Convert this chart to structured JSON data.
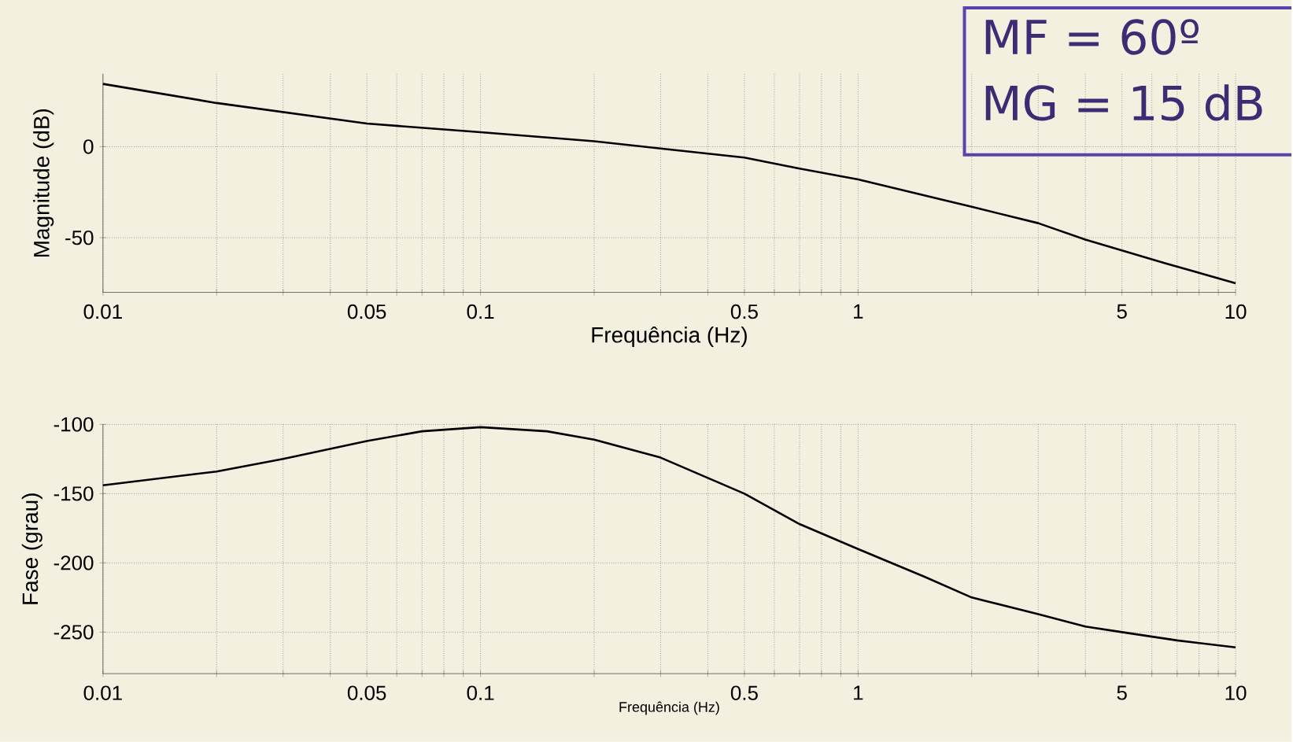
{
  "chart_data": [
    {
      "type": "line",
      "xlabel": "Frequência (Hz)",
      "ylabel": "Magnitude (dB)",
      "log": "x",
      "grid": true,
      "marker": "none",
      "line_style": "solid",
      "annotations": [
        "MF = 60º",
        "MG = 15 dB"
      ],
      "xlim": [
        0.01,
        10
      ],
      "ylim": [
        -80,
        40
      ],
      "xticks": [
        0.01,
        {
          "value": 0.02,
          "label": null
        },
        {
          "value": 0.03,
          "label": null
        },
        {
          "value": 0.04,
          "label": null
        },
        0.05,
        {
          "value": 0.06,
          "label": null
        },
        {
          "value": 0.07,
          "label": null
        },
        {
          "value": 0.08,
          "label": null
        },
        {
          "value": 0.09,
          "label": null
        },
        0.1,
        {
          "value": 0.2,
          "label": null
        },
        {
          "value": 0.3,
          "label": null
        },
        {
          "value": 0.4,
          "label": null
        },
        0.5,
        {
          "value": 0.6,
          "label": null
        },
        {
          "value": 0.7,
          "label": null
        },
        {
          "value": 0.8,
          "label": null
        },
        {
          "value": 0.9,
          "label": null
        },
        1,
        {
          "value": 2,
          "label": null
        },
        {
          "value": 3,
          "label": null
        },
        {
          "value": 4,
          "label": null
        },
        5,
        {
          "value": 6,
          "label": null
        },
        {
          "value": 7,
          "label": null
        },
        {
          "value": 8,
          "label": null
        },
        {
          "value": 9,
          "label": null
        },
        10
      ],
      "yticks": [
        -50,
        0
      ],
      "x": [
        0.01,
        0.02,
        0.05,
        0.1,
        0.2,
        0.3,
        0.5,
        0.7,
        1,
        2,
        3,
        4,
        6.5,
        10
      ],
      "series": [
        {
          "color": "#000000",
          "values": [
            34.5,
            24,
            12.7,
            8,
            3,
            -1,
            -6,
            -12,
            -18,
            -33,
            -42,
            -51,
            -64,
            -75
          ]
        }
      ]
    },
    {
      "type": "line",
      "xlabel": "Frequência (Hz)",
      "ylabel": "Fase (grau)",
      "log": "x",
      "grid": true,
      "marker": "none",
      "line_style": "solid",
      "xlim": [
        0.01,
        10
      ],
      "ylim": [
        -280,
        -100
      ],
      "xticks": [
        0.01,
        {
          "value": 0.02,
          "label": null
        },
        {
          "value": 0.03,
          "label": null
        },
        {
          "value": 0.04,
          "label": null
        },
        0.05,
        {
          "value": 0.06,
          "label": null
        },
        {
          "value": 0.07,
          "label": null
        },
        {
          "value": 0.08,
          "label": null
        },
        {
          "value": 0.09,
          "label": null
        },
        0.1,
        {
          "value": 0.2,
          "label": null
        },
        {
          "value": 0.3,
          "label": null
        },
        {
          "value": 0.4,
          "label": null
        },
        0.5,
        {
          "value": 0.6,
          "label": null
        },
        {
          "value": 0.7,
          "label": null
        },
        {
          "value": 0.8,
          "label": null
        },
        {
          "value": 0.9,
          "label": null
        },
        1,
        {
          "value": 2,
          "label": null
        },
        {
          "value": 3,
          "label": null
        },
        {
          "value": 4,
          "label": null
        },
        5,
        {
          "value": 6,
          "label": null
        },
        {
          "value": 7,
          "label": null
        },
        {
          "value": 8,
          "label": null
        },
        {
          "value": 9,
          "label": null
        },
        10
      ],
      "yticks": [
        -250,
        -200,
        -150,
        -100
      ],
      "x": [
        0.01,
        0.02,
        0.03,
        0.05,
        0.07,
        0.1,
        0.15,
        0.2,
        0.3,
        0.5,
        0.7,
        1,
        1.5,
        2,
        3,
        4,
        5,
        7,
        10
      ],
      "series": [
        {
          "color": "#000000",
          "values": [
            -144,
            -134,
            -125,
            -112,
            -105,
            -102,
            -105,
            -111,
            -124,
            -150,
            -172,
            -190,
            -210,
            -225,
            -237,
            -246,
            -250,
            -256,
            -261
          ]
        }
      ]
    }
  ]
}
